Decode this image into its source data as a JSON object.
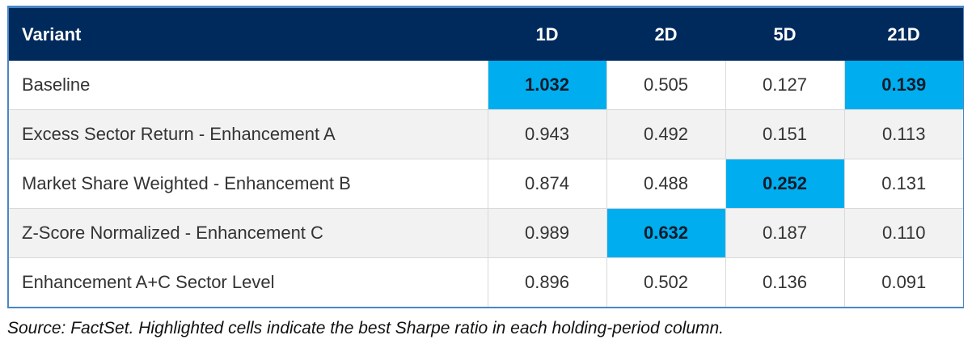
{
  "table": {
    "columns": [
      "Variant",
      "1D",
      "2D",
      "5D",
      "21D"
    ],
    "rows": [
      {
        "variant": "Baseline",
        "values": [
          "1.032",
          "0.505",
          "0.127",
          "0.139"
        ],
        "best": [
          true,
          false,
          false,
          true
        ]
      },
      {
        "variant": "Excess Sector Return - Enhancement A",
        "values": [
          "0.943",
          "0.492",
          "0.151",
          "0.113"
        ],
        "best": [
          false,
          false,
          false,
          false
        ]
      },
      {
        "variant": "Market Share Weighted - Enhancement B",
        "values": [
          "0.874",
          "0.488",
          "0.252",
          "0.131"
        ],
        "best": [
          false,
          false,
          true,
          false
        ]
      },
      {
        "variant": "Z-Score Normalized - Enhancement C",
        "values": [
          "0.989",
          "0.632",
          "0.187",
          "0.110"
        ],
        "best": [
          false,
          true,
          false,
          false
        ]
      },
      {
        "variant": "Enhancement A+C Sector Level",
        "values": [
          "0.896",
          "0.502",
          "0.136",
          "0.091"
        ],
        "best": [
          false,
          false,
          false,
          false
        ]
      }
    ]
  },
  "colors": {
    "header_bg": "#002a5c",
    "highlight": "#00aeef",
    "border": "#4a86c6"
  },
  "note": "Source: FactSet. Highlighted cells indicate the best Sharpe ratio in each holding-period column."
}
